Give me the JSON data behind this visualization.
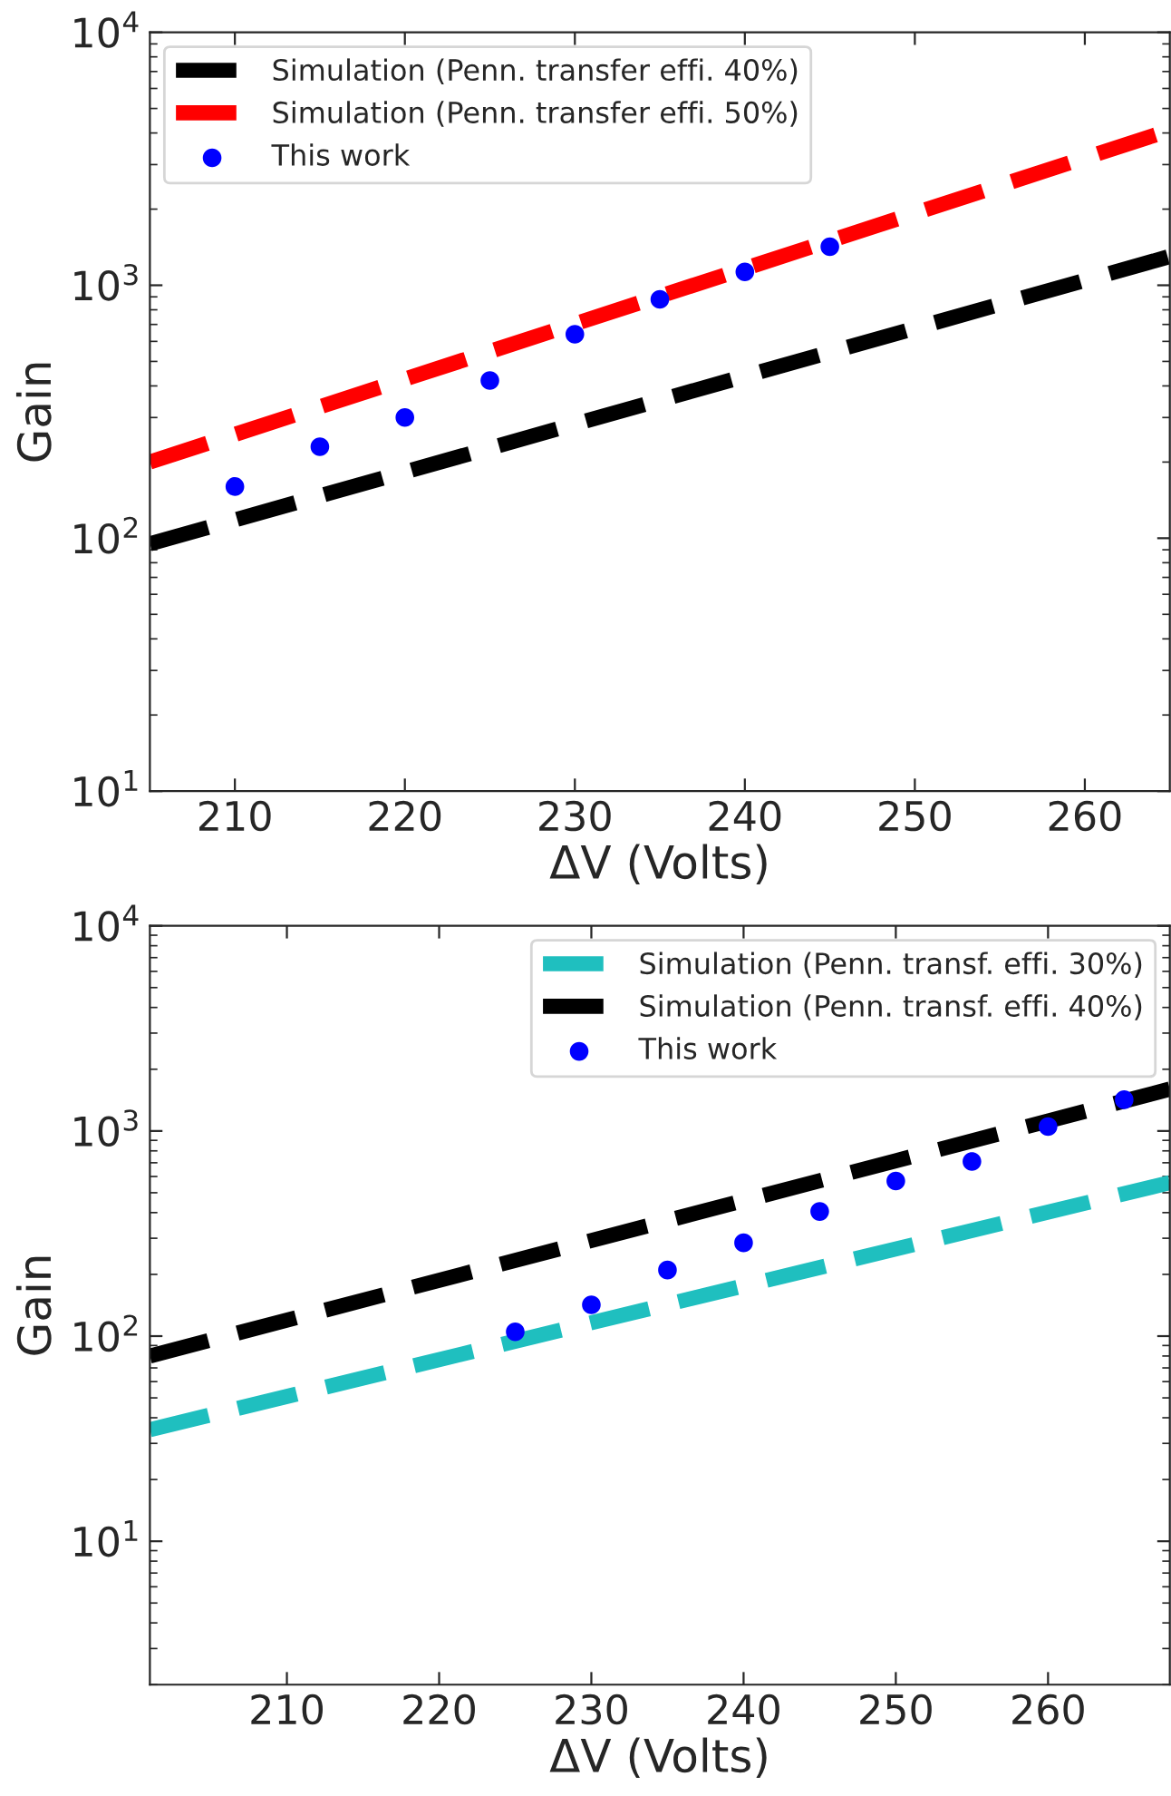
{
  "chart_data": [
    {
      "type": "line",
      "xlabel": "ΔV (Volts)",
      "ylabel": "Gain",
      "log": "y",
      "legend": "top left",
      "grid": false,
      "line_style": "dashed",
      "xlim": [
        205,
        265
      ],
      "xticks": [
        210,
        220,
        230,
        240,
        250,
        260
      ],
      "ylim": [
        10,
        10000
      ],
      "yticks": [
        {
          "value": 10,
          "label": "10$^{1}$"
        },
        {
          "value": 100,
          "label": "10$^{2}$"
        },
        {
          "value": 1000,
          "label": "10$^{3}$"
        },
        {
          "value": 10000,
          "label": "10$^{4}$"
        }
      ],
      "series": [
        {
          "name": "Simulation (Penn. transfer effi. 40%)",
          "color": "#000000",
          "x": [
            205,
            265
          ],
          "values": [
            95,
            1300
          ]
        },
        {
          "name": "Simulation (Penn. transfer effi. 50%)",
          "color": "#ff0000",
          "x": [
            205,
            265
          ],
          "values": [
            200,
            4100
          ]
        },
        {
          "name": "This work",
          "type": "scatter",
          "marker": "circle",
          "color": "#0000ff",
          "x": [
            210,
            215,
            220,
            225,
            230,
            235,
            240,
            245
          ],
          "values": [
            160,
            230,
            300,
            420,
            640,
            880,
            1130,
            1420
          ]
        }
      ]
    },
    {
      "type": "line",
      "xlabel": "ΔV (Volts)",
      "ylabel": "Gain",
      "log": "y",
      "legend": "top right",
      "grid": false,
      "line_style": "dashed",
      "xlim": [
        201,
        268
      ],
      "xticks": [
        210,
        220,
        230,
        240,
        250,
        260
      ],
      "ylim": [
        2,
        10000
      ],
      "yticks": [
        {
          "value": 10,
          "label": "10$^{1}$"
        },
        {
          "value": 100,
          "label": "10$^{2}$"
        },
        {
          "value": 1000,
          "label": "10$^{3}$"
        },
        {
          "value": 10000,
          "label": "10$^{4}$"
        }
      ],
      "series": [
        {
          "name": "Simulation (Penn. transf. effi. 30%)",
          "color": "#1fbfbf",
          "x": [
            201,
            268
          ],
          "values": [
            35,
            560
          ]
        },
        {
          "name": "Simulation (Penn. transf. effi. 40%)",
          "color": "#000000",
          "x": [
            201,
            268
          ],
          "values": [
            80,
            1600
          ]
        },
        {
          "name": "This work",
          "type": "scatter",
          "marker": "circle",
          "color": "#0000ff",
          "x": [
            225,
            230,
            235,
            240,
            245,
            250,
            255,
            260,
            265
          ],
          "values": [
            105,
            142,
            210,
            285,
            405,
            570,
            710,
            1050,
            1420
          ]
        }
      ]
    }
  ]
}
